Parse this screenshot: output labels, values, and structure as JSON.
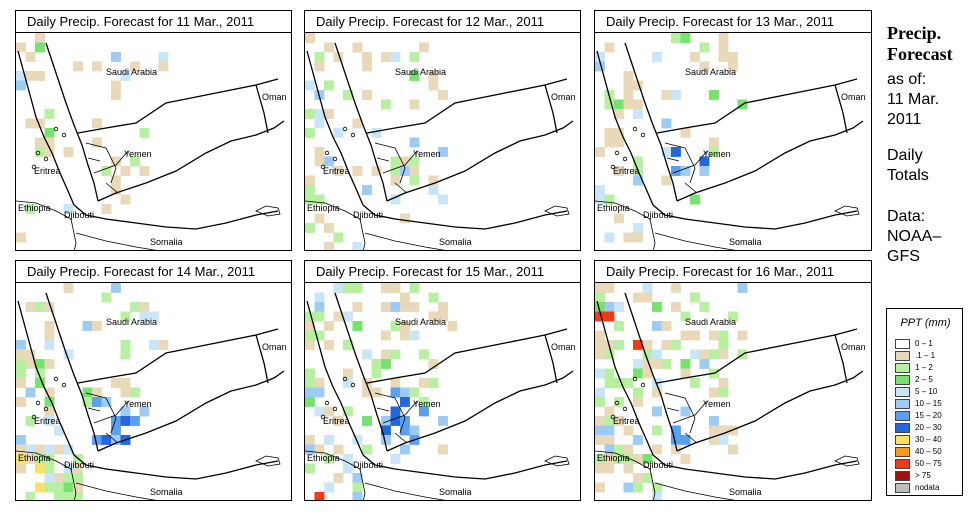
{
  "panels": [
    {
      "title": "Daily Precip. Forecast for  11 Mar., 2011"
    },
    {
      "title": "Daily Precip. Forecast for  12 Mar., 2011"
    },
    {
      "title": "Daily Precip. Forecast for  13 Mar., 2011"
    },
    {
      "title": "Daily Precip. Forecast for  14 Mar., 2011"
    },
    {
      "title": "Daily Precip. Forecast for  15 Mar., 2011"
    },
    {
      "title": "Daily Precip. Forecast for  16 Mar., 2011"
    }
  ],
  "map_labels": {
    "saudi_arabia": "Saudi Arabia",
    "oman": "Oman",
    "yemen": "Yemen",
    "eritrea": "Eritrea",
    "ethiopia": "Ethiopia",
    "djibouti": "Djibouti",
    "somalia": "Somalia"
  },
  "sidebar": {
    "line1": "Precip.",
    "line2": "Forecast",
    "line3": "as of:",
    "line4": "11 Mar.",
    "line5": "2011",
    "line6": "Daily",
    "line7": "Totals",
    "line8": "Data:",
    "line9": "NOAA–",
    "line10": "GFS"
  },
  "legend": {
    "title": "PPT (mm)",
    "items": [
      {
        "label": "0 – 1",
        "color": "#ffffff"
      },
      {
        "label": ".1 – 1",
        "color": "#ead9b8"
      },
      {
        "label": "1 – 2",
        "color": "#b7f0a0"
      },
      {
        "label": "2 – 5",
        "color": "#79e26f"
      },
      {
        "label": "5 – 10",
        "color": "#c8e6f7"
      },
      {
        "label": "10 – 15",
        "color": "#9ccbf5"
      },
      {
        "label": "15 – 20",
        "color": "#5b9ff0"
      },
      {
        "label": "20 – 30",
        "color": "#2266e0"
      },
      {
        "label": "30 – 40",
        "color": "#ffe066"
      },
      {
        "label": "40 – 50",
        "color": "#ff9a1e"
      },
      {
        "label": "50 – 75",
        "color": "#ee3a16"
      },
      {
        "label": "> 75",
        "color": "#a81010"
      },
      {
        "label": "nodata",
        "color": "#bdbdbd"
      }
    ]
  }
}
